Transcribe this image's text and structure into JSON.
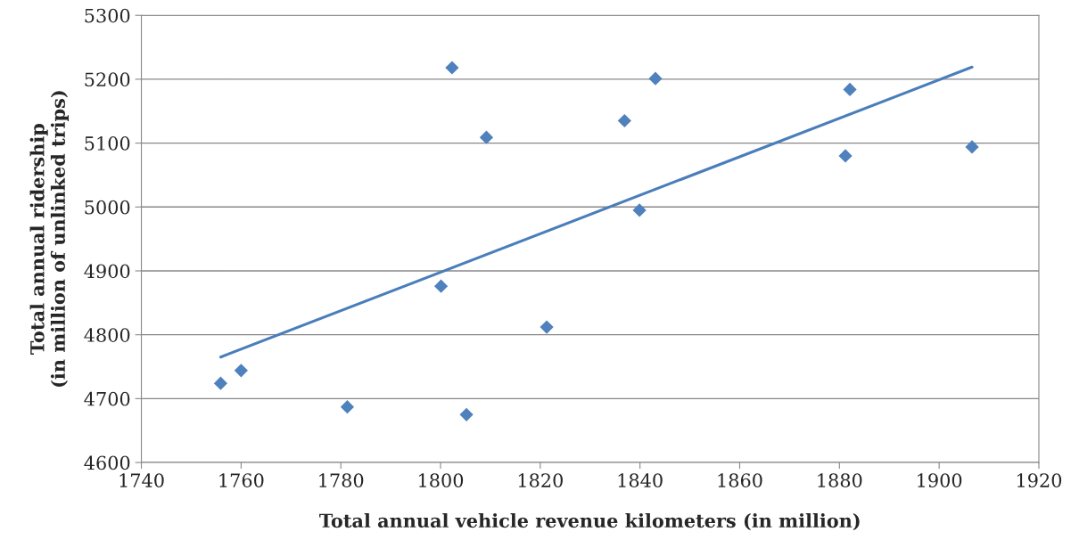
{
  "chart_data": {
    "type": "scatter",
    "xlabel": "Total annual vehicle revenue kilometers (in million)",
    "ylabel": "Total annual ridership\n(in million of unlinked trips)",
    "xlim": [
      1740,
      1920
    ],
    "xticks": [
      1740,
      1760,
      1780,
      1800,
      1820,
      1840,
      1860,
      1880,
      1900,
      1920
    ],
    "ylim": [
      4600,
      5300
    ],
    "yticks": [
      4600,
      4700,
      4800,
      4900,
      5000,
      5100,
      5200,
      5300
    ],
    "grid": "y",
    "marker": "diamond",
    "series": [
      {
        "color": "#4f81bd",
        "x": [
          1755.9,
          1760.0,
          1781.3,
          1800.1,
          1802.3,
          1805.2,
          1809.2,
          1821.3,
          1836.9,
          1839.9,
          1843.1,
          1881.2,
          1882.1,
          1906.6
        ],
        "values": [
          4724,
          4744,
          4687,
          4876,
          5218,
          4675,
          5109,
          4812,
          5135,
          4995,
          5201,
          5080,
          5184,
          5094
        ]
      },
      {
        "type": "line",
        "color": "#4a7ebb",
        "marker": "none",
        "x": [
          1755.9,
          1906.6
        ],
        "values": [
          4765,
          5219
        ]
      }
    ]
  }
}
